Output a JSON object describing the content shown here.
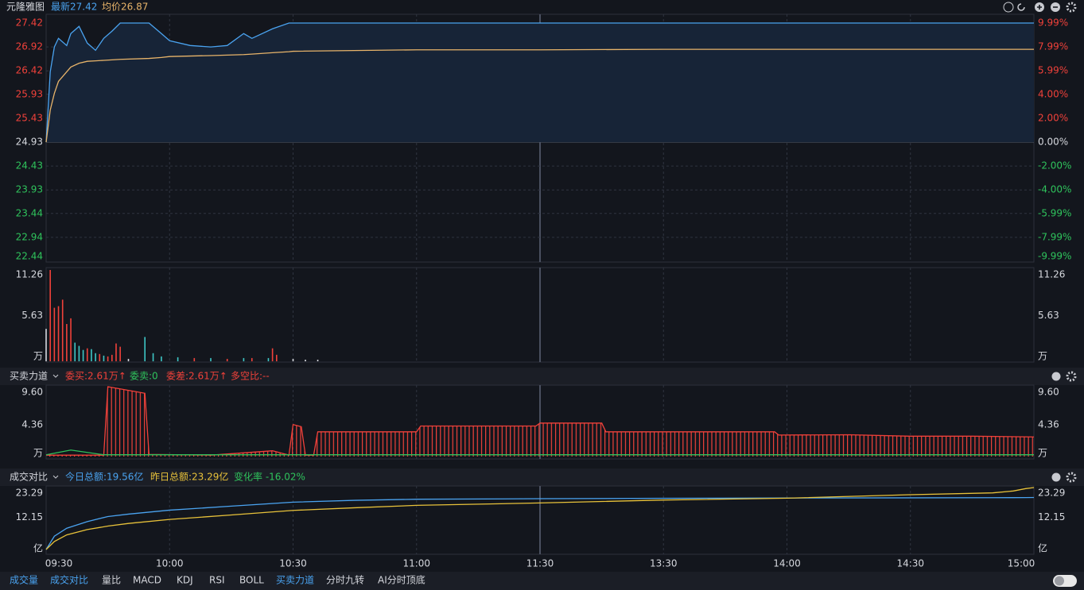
{
  "header": {
    "stock": "元隆雅图",
    "latest": "最新27.42",
    "avg": "均价26.87"
  },
  "chart_data": [
    {
      "type": "line",
      "x": [
        "09:30",
        "09:31",
        "09:32",
        "09:33",
        "09:35",
        "09:36",
        "09:38",
        "09:40",
        "09:42",
        "09:44",
        "09:46",
        "09:48",
        "09:55",
        "09:58",
        "10:00",
        "10:05",
        "10:10",
        "10:14",
        "10:18",
        "10:20",
        "10:25",
        "10:29",
        "10:30",
        "11:00",
        "11:30",
        "13:30",
        "14:00",
        "15:00"
      ],
      "series": [
        {
          "color": "#4aa3f0",
          "fill": "#172437",
          "values": [
            24.93,
            26.4,
            26.92,
            27.1,
            26.95,
            27.2,
            27.35,
            27.0,
            26.85,
            27.1,
            27.25,
            27.42,
            27.42,
            27.2,
            27.05,
            26.95,
            26.92,
            26.95,
            27.2,
            27.1,
            27.3,
            27.42,
            27.42,
            27.42,
            27.42,
            27.42,
            27.42,
            27.42
          ]
        },
        {
          "color": "#e8b46a",
          "values": [
            24.93,
            25.6,
            25.95,
            26.2,
            26.4,
            26.5,
            26.58,
            26.62,
            26.63,
            26.64,
            26.65,
            26.66,
            26.68,
            26.7,
            26.72,
            26.73,
            26.74,
            26.75,
            26.76,
            26.77,
            26.8,
            26.82,
            26.83,
            26.86,
            26.86,
            26.87,
            26.87,
            26.87
          ]
        }
      ],
      "ylim": [
        22.44,
        27.42
      ],
      "yticks": [
        27.42,
        26.92,
        26.42,
        25.93,
        25.43,
        24.93,
        24.43,
        23.93,
        23.44,
        22.94,
        22.44
      ],
      "y2lim": [
        -9.99,
        9.99
      ],
      "y2ticks": [
        {
          "value": 9.99,
          "label": "9.99%"
        },
        {
          "value": 7.99,
          "label": "7.99%"
        },
        {
          "value": 5.99,
          "label": "5.99%"
        },
        {
          "value": 4,
          "label": "4.00%"
        },
        {
          "value": 2,
          "label": "2.00%"
        },
        {
          "value": 0,
          "label": "0.00%"
        },
        {
          "value": -2,
          "label": "-2.00%"
        },
        {
          "value": -4,
          "label": "-4.00%"
        },
        {
          "value": -5.99,
          "label": "-5.99%"
        },
        {
          "value": -7.99,
          "label": "-7.99%"
        },
        {
          "value": -9.99,
          "label": "-9.99%"
        }
      ],
      "xticks": [
        "09:30",
        "10:00",
        "10:30",
        "11:00",
        "11:30",
        "13:30",
        "14:00",
        "14:30",
        "15:00"
      ],
      "grid": true
    },
    {
      "type": "bar",
      "x": [
        "09:30",
        "09:31",
        "09:32",
        "09:33",
        "09:34",
        "09:35",
        "09:36",
        "09:37",
        "09:38",
        "09:39",
        "09:40",
        "09:41",
        "09:42",
        "09:43",
        "09:44",
        "09:45",
        "09:46",
        "09:47",
        "09:48",
        "09:50",
        "09:54",
        "09:56",
        "09:58",
        "10:02",
        "10:06",
        "10:10",
        "10:14",
        "10:18",
        "10:20",
        "10:24",
        "10:25",
        "10:26",
        "10:30",
        "10:33",
        "10:36"
      ],
      "values": [
        4.0,
        11.26,
        6.6,
        6.8,
        7.6,
        4.6,
        5.3,
        2.3,
        1.9,
        1.4,
        1.6,
        1.5,
        1.0,
        0.9,
        0.7,
        0.6,
        0.8,
        2.2,
        1.8,
        0.3,
        3.0,
        1.0,
        0.6,
        0.5,
        0.4,
        0.4,
        0.3,
        0.4,
        0.4,
        0.4,
        1.6,
        0.8,
        0.3,
        0.2,
        0.2
      ],
      "colors": [
        "#d6d8de",
        "#f0413a",
        "#f0413a",
        "#f0413a",
        "#f0413a",
        "#f0413a",
        "#f0413a",
        "#3ec6c6",
        "#3ec6c6",
        "#3ec6c6",
        "#f0413a",
        "#3ec6c6",
        "#3ec6c6",
        "#f0413a",
        "#3ec6c6",
        "#f0413a",
        "#f0413a",
        "#f0413a",
        "#f0413a",
        "#d6d8de",
        "#3ec6c6",
        "#3ec6c6",
        "#3ec6c6",
        "#3ec6c6",
        "#f0413a",
        "#3ec6c6",
        "#f0413a",
        "#3ec6c6",
        "#f0413a",
        "#3ec6c6",
        "#f0413a",
        "#f0413a",
        "#d6d8de",
        "#d6d8de",
        "#d6d8de"
      ],
      "ylim": [
        0,
        11.26
      ],
      "yticks": [
        11.26,
        5.63,
        {
          "value": 0,
          "label": "万"
        }
      ],
      "xticks": [
        "09:30",
        "10:00",
        "10:30",
        "11:00",
        "11:30",
        "13:30",
        "14:00",
        "14:30",
        "15:00"
      ]
    },
    {
      "type": "line",
      "title": "买卖力道",
      "stats": [
        "委买:2.61万↑",
        "委卖:0",
        "委差:2.61万↑",
        "多空比:--"
      ],
      "x": [
        "09:30",
        "09:36",
        "09:44",
        "09:45",
        "09:48",
        "09:51",
        "09:54",
        "09:55",
        "10:10",
        "10:25",
        "10:29",
        "10:30",
        "10:32",
        "10:33",
        "10:35",
        "10:36",
        "11:00",
        "11:01",
        "11:29",
        "11:30",
        "13:15",
        "13:16",
        "13:57",
        "13:58",
        "14:15",
        "14:30",
        "14:45",
        "15:00"
      ],
      "series": [
        {
          "color": "#f0413a",
          "fill": "hatch",
          "values": [
            0.2,
            0.2,
            0.2,
            9.6,
            9.3,
            9.0,
            8.7,
            0.3,
            0.2,
            0.8,
            0.2,
            4.4,
            4.1,
            0.2,
            0.2,
            3.4,
            3.4,
            4.2,
            4.2,
            4.6,
            4.6,
            3.4,
            3.4,
            2.96,
            3.0,
            2.8,
            2.8,
            2.7
          ]
        },
        {
          "color": "#2fc35c",
          "values": [
            0.25,
            0.9,
            0.25,
            0.25,
            0.25,
            0.25,
            0.25,
            0.25,
            0.25,
            0.25,
            0.25,
            0.25,
            0.25,
            0.25,
            0.25,
            0.25,
            0.25,
            0.25,
            0.25,
            0.25,
            0.25,
            0.25,
            0.25,
            0.25,
            0.25,
            0.25,
            0.25,
            0.25
          ]
        }
      ],
      "ylim": [
        0,
        9.6
      ],
      "yticks": [
        {
          "value": 9.6,
          "label": "9.60"
        },
        4.36,
        {
          "value": 0,
          "label": "万"
        }
      ],
      "xticks": [
        "09:30",
        "10:00",
        "10:30",
        "11:00",
        "11:30",
        "13:30",
        "14:00",
        "14:30",
        "15:00"
      ]
    },
    {
      "type": "line",
      "title": "成交对比",
      "stats": [
        "今日总额:19.56亿",
        "昨日总额:23.29亿",
        "变化率 -16.02%"
      ],
      "x": [
        "09:30",
        "09:32",
        "09:35",
        "09:40",
        "09:45",
        "09:50",
        "10:00",
        "10:15",
        "10:30",
        "10:45",
        "11:00",
        "11:30",
        "13:30",
        "14:00",
        "14:30",
        "14:50",
        "14:55",
        "14:58",
        "15:00"
      ],
      "series": [
        {
          "color": "#4aa3f0",
          "values": [
            0,
            5,
            8,
            10.5,
            12.4,
            13.3,
            14.8,
            16.3,
            17.8,
            18.5,
            18.9,
            19.1,
            19.25,
            19.35,
            19.42,
            19.48,
            19.5,
            19.53,
            19.56
          ]
        },
        {
          "color": "#e8c23a",
          "values": [
            0,
            3,
            5.5,
            7.5,
            8.8,
            9.8,
            11.3,
            13,
            14.7,
            15.7,
            16.6,
            17.5,
            18.6,
            19.3,
            20.6,
            21.3,
            22.0,
            22.9,
            23.29
          ]
        }
      ],
      "ylim": [
        0,
        23.29
      ],
      "yticks": [
        23.29,
        12.15,
        {
          "value": 0,
          "label": "亿"
        }
      ],
      "xticks": [
        "09:30",
        "10:00",
        "10:30",
        "11:00",
        "11:30",
        "13:30",
        "14:00",
        "14:30",
        "15:00"
      ]
    }
  ],
  "tabs": [
    "成交量",
    "成交对比",
    "量比",
    "MACD",
    "KDJ",
    "RSI",
    "BOLL",
    "买卖力道",
    "分时九转",
    "AI分时顶底"
  ]
}
